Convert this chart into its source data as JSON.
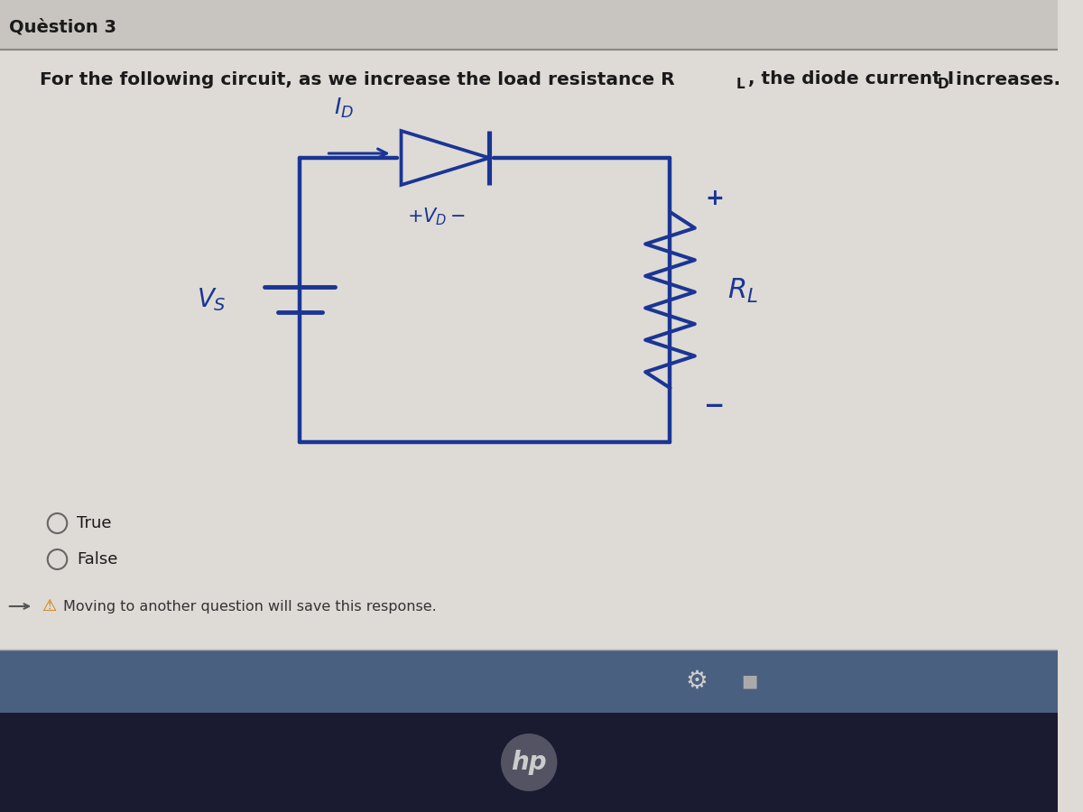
{
  "title": "Quèstion 3",
  "bg_color": "#dedad5",
  "header_color": "#c8c4bf",
  "circuit_color": "#1a3595",
  "text_color": "#1a1a1a",
  "option_true": "True",
  "option_false": "False",
  "warning_text": "Moving to another question will save this response.",
  "taskbar_color": "#4a6080",
  "bottom_color": "#1a1a30",
  "question_line1": "For the following circuit, as we increase the load resistance R",
  "question_rl": "L",
  "question_line2": ", the diode current I",
  "question_id": "D",
  "question_end": " increases."
}
